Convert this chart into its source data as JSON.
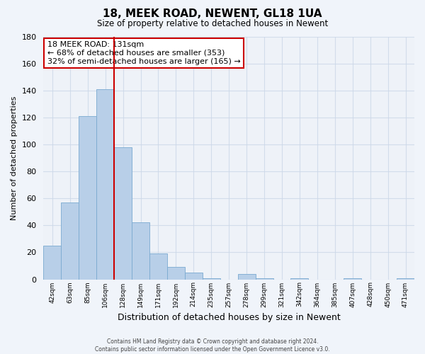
{
  "title": "18, MEEK ROAD, NEWENT, GL18 1UA",
  "subtitle": "Size of property relative to detached houses in Newent",
  "xlabel": "Distribution of detached houses by size in Newent",
  "ylabel": "Number of detached properties",
  "bar_labels": [
    "42sqm",
    "63sqm",
    "85sqm",
    "106sqm",
    "128sqm",
    "149sqm",
    "171sqm",
    "192sqm",
    "214sqm",
    "235sqm",
    "257sqm",
    "278sqm",
    "299sqm",
    "321sqm",
    "342sqm",
    "364sqm",
    "385sqm",
    "407sqm",
    "428sqm",
    "450sqm",
    "471sqm"
  ],
  "bar_values": [
    25,
    57,
    121,
    141,
    98,
    42,
    19,
    9,
    5,
    1,
    0,
    4,
    1,
    0,
    1,
    0,
    0,
    1,
    0,
    0,
    1
  ],
  "bar_color": "#b8cfe8",
  "bar_edge_color": "#7aaad0",
  "vline_color": "#cc0000",
  "vline_position": 3.5,
  "annotation_text_line1": "18 MEEK ROAD: 131sqm",
  "annotation_text_line2": "← 68% of detached houses are smaller (353)",
  "annotation_text_line3": "32% of semi-detached houses are larger (165) →",
  "annotation_box_edgecolor": "#cc0000",
  "ylim": [
    0,
    180
  ],
  "yticks": [
    0,
    20,
    40,
    60,
    80,
    100,
    120,
    140,
    160,
    180
  ],
  "grid_color": "#ccd8e8",
  "grid_alpha": 0.8,
  "background_color": "#f0f4fa",
  "plot_bg_color": "#eef2f8",
  "footer_line1": "Contains HM Land Registry data © Crown copyright and database right 2024.",
  "footer_line2": "Contains public sector information licensed under the Open Government Licence v3.0."
}
